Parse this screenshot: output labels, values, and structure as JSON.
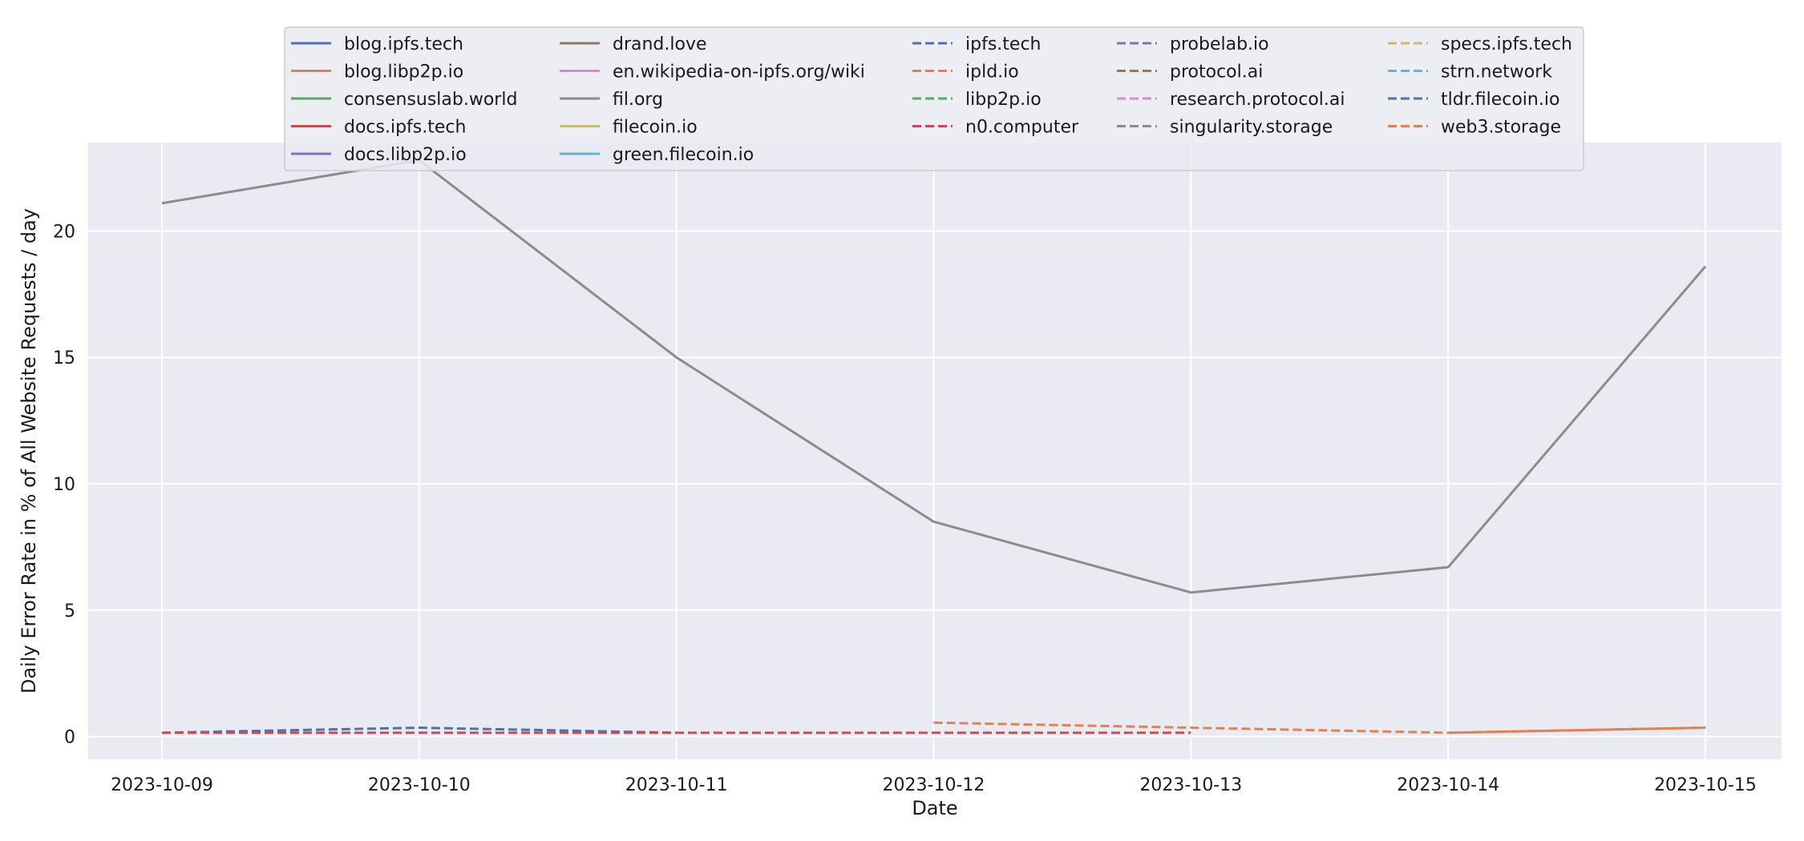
{
  "chart_data": {
    "type": "line",
    "xlabel": "Date",
    "ylabel": "Daily Error Rate in % of All Website Requests / day",
    "x": [
      "2023-10-09",
      "2023-10-10",
      "2023-10-11",
      "2023-10-12",
      "2023-10-13",
      "2023-10-14",
      "2023-10-15"
    ],
    "ylim": [
      -0.9,
      23.5
    ],
    "yticks": [
      0,
      5,
      10,
      15,
      20
    ],
    "grid": true,
    "legend": {
      "placement": "top-center",
      "columns": 5
    },
    "background": "#eaeaf2",
    "series": [
      {
        "name": "blog.ipfs.tech",
        "color": "#4c72b0",
        "style": "solid",
        "values": [
          null,
          null,
          null,
          null,
          null,
          null,
          null
        ]
      },
      {
        "name": "blog.libp2p.io",
        "color": "#dd8452",
        "style": "solid",
        "values": [
          null,
          null,
          null,
          null,
          null,
          0.15,
          0.35
        ]
      },
      {
        "name": "consensuslab.world",
        "color": "#55a868",
        "style": "solid",
        "values": [
          null,
          null,
          null,
          null,
          null,
          null,
          null
        ]
      },
      {
        "name": "docs.ipfs.tech",
        "color": "#c44e52",
        "style": "solid",
        "values": [
          null,
          null,
          null,
          null,
          null,
          null,
          null
        ]
      },
      {
        "name": "docs.libp2p.io",
        "color": "#8172b3",
        "style": "solid",
        "values": [
          null,
          null,
          null,
          null,
          null,
          null,
          null
        ]
      },
      {
        "name": "drand.love",
        "color": "#937860",
        "style": "solid",
        "values": [
          null,
          null,
          null,
          null,
          null,
          null,
          null
        ]
      },
      {
        "name": "en.wikipedia-on-ipfs.org/wiki",
        "color": "#da8bc3",
        "style": "solid",
        "values": [
          null,
          null,
          null,
          null,
          null,
          null,
          null
        ]
      },
      {
        "name": "fil.org",
        "color": "#8c8c8c",
        "style": "solid",
        "values": [
          21.1,
          22.8,
          15.0,
          8.5,
          5.7,
          6.7,
          18.6
        ]
      },
      {
        "name": "filecoin.io",
        "color": "#ccb974",
        "style": "solid",
        "values": [
          null,
          null,
          null,
          null,
          null,
          null,
          null
        ]
      },
      {
        "name": "green.filecoin.io",
        "color": "#64b5cd",
        "style": "solid",
        "values": [
          null,
          null,
          null,
          null,
          null,
          null,
          null
        ]
      },
      {
        "name": "ipfs.tech",
        "color": "#4c72b0",
        "style": "dashed",
        "values": [
          0.15,
          0.35,
          0.15,
          null,
          null,
          null,
          null
        ]
      },
      {
        "name": "ipld.io",
        "color": "#dd8452",
        "style": "dashed",
        "values": [
          null,
          null,
          null,
          0.55,
          0.35,
          0.15,
          null
        ]
      },
      {
        "name": "libp2p.io",
        "color": "#55a868",
        "style": "dashed",
        "values": [
          null,
          null,
          null,
          null,
          null,
          null,
          null
        ]
      },
      {
        "name": "n0.computer",
        "color": "#c44e52",
        "style": "dashed",
        "values": [
          0.15,
          0.15,
          0.15,
          0.15,
          0.15,
          null,
          null
        ]
      },
      {
        "name": "probelab.io",
        "color": "#8172b3",
        "style": "dashed",
        "values": [
          null,
          null,
          null,
          null,
          null,
          null,
          null
        ]
      },
      {
        "name": "protocol.ai",
        "color": "#937860",
        "style": "dashed",
        "values": [
          null,
          null,
          null,
          null,
          null,
          null,
          null
        ]
      },
      {
        "name": "research.protocol.ai",
        "color": "#da8bc3",
        "style": "dashed",
        "values": [
          null,
          null,
          null,
          null,
          null,
          null,
          null
        ]
      },
      {
        "name": "singularity.storage",
        "color": "#8c8c8c",
        "style": "dashed",
        "values": [
          null,
          null,
          null,
          null,
          null,
          null,
          null
        ]
      },
      {
        "name": "specs.ipfs.tech",
        "color": "#ccb974",
        "style": "dashed",
        "values": [
          null,
          null,
          null,
          null,
          null,
          null,
          null
        ]
      },
      {
        "name": "strn.network",
        "color": "#64b5cd",
        "style": "dashed",
        "values": [
          null,
          null,
          null,
          null,
          null,
          null,
          null
        ]
      },
      {
        "name": "tldr.filecoin.io",
        "color": "#4c72b0",
        "style": "dashed",
        "values": [
          null,
          null,
          null,
          null,
          null,
          null,
          null
        ]
      },
      {
        "name": "web3.storage",
        "color": "#dd8452",
        "style": "dashed",
        "values": [
          null,
          null,
          null,
          null,
          null,
          0.15,
          0.35
        ]
      }
    ]
  }
}
